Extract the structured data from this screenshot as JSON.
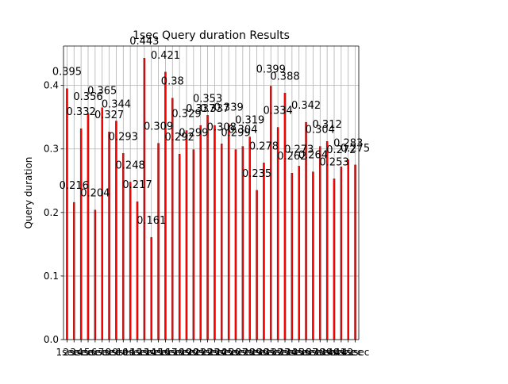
{
  "chart_data": {
    "type": "bar",
    "title": "1sec Query duration Results",
    "xlabel": "",
    "ylabel": "Query duration",
    "ylim": [
      0,
      0.462
    ],
    "yticks": [
      0.0,
      0.1,
      0.2,
      0.3,
      0.4
    ],
    "ytick_labels": [
      "0.0",
      "0.1",
      "0.2",
      "0.3",
      "0.4"
    ],
    "grid": true,
    "legend": "none",
    "bar_color": "#ff0000",
    "bar_edge_color": "#000000",
    "grid_color": "#b0b0b0",
    "category_label_text": "sec",
    "categories": [
      "1sec",
      "2sec",
      "3sec",
      "4sec",
      "5sec",
      "6sec",
      "7sec",
      "8sec",
      "9sec",
      "10sec",
      "11sec",
      "12sec",
      "13sec",
      "14sec",
      "15sec",
      "16sec",
      "17sec",
      "18sec",
      "19sec",
      "20sec",
      "21sec",
      "22sec",
      "23sec",
      "24sec",
      "25sec",
      "26sec",
      "27sec",
      "28sec",
      "29sec",
      "30sec",
      "31sec",
      "32sec",
      "33sec",
      "34sec",
      "35sec",
      "36sec",
      "37sec",
      "38sec",
      "39sec",
      "40sec",
      "41sec",
      "42sec"
    ],
    "values": [
      0.395,
      0.216,
      0.332,
      0.356,
      0.204,
      0.365,
      0.327,
      0.344,
      0.293,
      0.248,
      0.217,
      0.443,
      0.161,
      0.309,
      0.421,
      0.38,
      0.292,
      0.329,
      0.299,
      0.337,
      0.353,
      0.337,
      0.308,
      0.339,
      0.299,
      0.304,
      0.319,
      0.235,
      0.278,
      0.399,
      0.334,
      0.388,
      0.262,
      0.273,
      0.342,
      0.264,
      0.304,
      0.312,
      0.253,
      0.272,
      0.283,
      0.275
    ],
    "value_labels": [
      "0.395",
      "0.216",
      "0.332",
      "0.356",
      "0.204",
      "0.365",
      "0.327",
      "0.344",
      "0.293",
      "0.248",
      "0.217",
      "0.443",
      "0.161",
      "0.309",
      "0.421",
      "0.38",
      "0.292",
      "0.329",
      "0.299",
      "0.337",
      "0.353",
      "0.337",
      "0.308",
      "0.339",
      "0.299",
      "0.304",
      "0.319",
      "0.235",
      "0.278",
      "0.399",
      "0.334",
      "0.388",
      "0.262",
      "0.273",
      "0.342",
      "0.264",
      "0.304",
      "0.312",
      "0.253",
      "0.272",
      "0.283",
      "0.275"
    ]
  }
}
